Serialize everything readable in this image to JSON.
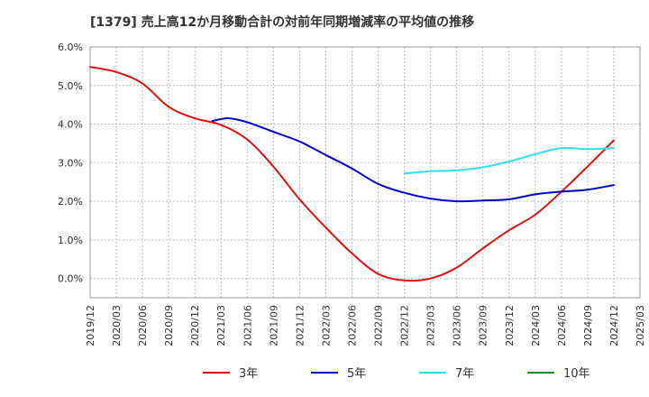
{
  "chart_data": {
    "type": "line",
    "title": "[1379]  売上高12か月移動合計の対前年同期増減率の平均値の推移",
    "xlabel": "",
    "ylabel": "",
    "ylim": [
      -0.5,
      6.0
    ],
    "yticks": [
      0.0,
      1.0,
      2.0,
      3.0,
      4.0,
      5.0,
      6.0
    ],
    "ytick_labels": [
      "0.0%",
      "1.0%",
      "2.0%",
      "3.0%",
      "4.0%",
      "5.0%",
      "6.0%"
    ],
    "xticks": [
      "2019/12",
      "2020/03",
      "2020/06",
      "2020/09",
      "2020/12",
      "2021/03",
      "2021/06",
      "2021/09",
      "2021/12",
      "2022/03",
      "2022/06",
      "2022/09",
      "2022/12",
      "2023/03",
      "2023/06",
      "2023/09",
      "2023/12",
      "2024/03",
      "2024/06",
      "2024/09",
      "2024/12",
      "2025/03"
    ],
    "grid": true,
    "legend_position": "bottom",
    "series": [
      {
        "name": "3年",
        "color": "#dd1111",
        "points": [
          [
            "2019/12",
            5.48
          ],
          [
            "2020/03",
            5.35
          ],
          [
            "2020/06",
            5.05
          ],
          [
            "2020/09",
            4.45
          ],
          [
            "2020/12",
            4.15
          ],
          [
            "2021/03",
            3.98
          ],
          [
            "2021/06",
            3.6
          ],
          [
            "2021/09",
            2.9
          ],
          [
            "2021/12",
            2.05
          ],
          [
            "2022/03",
            1.32
          ],
          [
            "2022/06",
            0.65
          ],
          [
            "2022/09",
            0.12
          ],
          [
            "2022/12",
            -0.05
          ],
          [
            "2023/03",
            0.0
          ],
          [
            "2023/06",
            0.28
          ],
          [
            "2023/09",
            0.78
          ],
          [
            "2023/12",
            1.25
          ],
          [
            "2024/03",
            1.65
          ],
          [
            "2024/06",
            2.25
          ],
          [
            "2024/09",
            2.9
          ],
          [
            "2024/12",
            3.58
          ]
        ]
      },
      {
        "name": "5年",
        "color": "#0000cc",
        "points": [
          [
            "2021/02",
            4.08
          ],
          [
            "2021/03",
            4.13
          ],
          [
            "2021/04",
            4.15
          ],
          [
            "2021/06",
            4.05
          ],
          [
            "2021/09",
            3.8
          ],
          [
            "2021/12",
            3.55
          ],
          [
            "2022/03",
            3.2
          ],
          [
            "2022/06",
            2.85
          ],
          [
            "2022/09",
            2.45
          ],
          [
            "2022/12",
            2.22
          ],
          [
            "2023/03",
            2.07
          ],
          [
            "2023/06",
            2.0
          ],
          [
            "2023/09",
            2.02
          ],
          [
            "2023/12",
            2.05
          ],
          [
            "2024/03",
            2.18
          ],
          [
            "2024/06",
            2.25
          ],
          [
            "2024/09",
            2.3
          ],
          [
            "2024/12",
            2.42
          ]
        ]
      },
      {
        "name": "7年",
        "color": "#33e0f0",
        "points": [
          [
            "2022/12",
            2.72
          ],
          [
            "2023/03",
            2.78
          ],
          [
            "2023/06",
            2.8
          ],
          [
            "2023/09",
            2.88
          ],
          [
            "2023/12",
            3.03
          ],
          [
            "2024/03",
            3.22
          ],
          [
            "2024/06",
            3.38
          ],
          [
            "2024/09",
            3.35
          ],
          [
            "2024/12",
            3.38
          ]
        ]
      },
      {
        "name": "10年",
        "color": "#228822",
        "points": []
      }
    ]
  }
}
